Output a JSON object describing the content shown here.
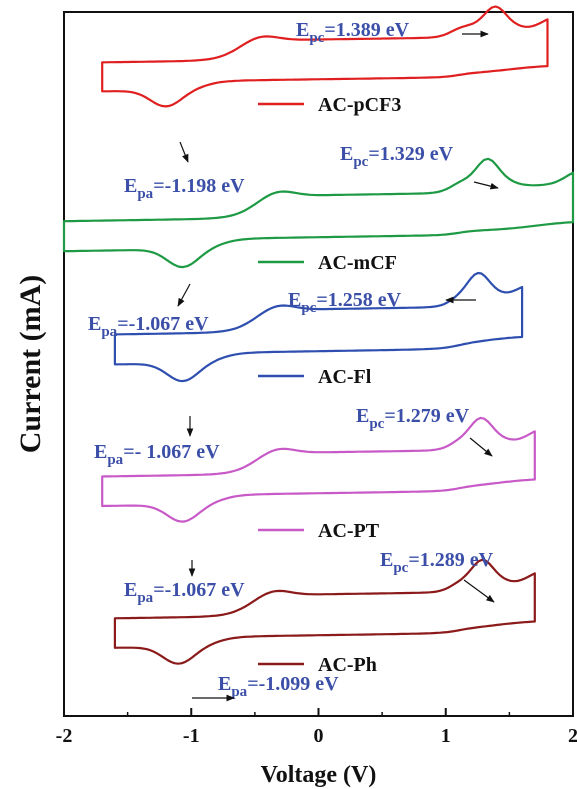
{
  "chart_data": {
    "type": "line",
    "xlabel": "Voltage (V)",
    "ylabel": "Current (mA)",
    "xlim": [
      -2,
      2
    ],
    "x_ticks": [
      "-2",
      "-1",
      "0",
      "1",
      "2"
    ],
    "y_ticks_labeled": false,
    "grid": false,
    "legend_placement": "inline-labels",
    "series": [
      {
        "name": "AC-pCF3",
        "color": "#e02020",
        "offset": 4,
        "annotations": [
          {
            "text": "Epc=1.389 eV",
            "sub": "pc",
            "value": "1.389 eV",
            "x": 1.389
          },
          {
            "text": "Epa=-1.198 eV",
            "sub": "pa",
            "value": "-1.198 eV",
            "x": -1.198
          }
        ],
        "profile": {
          "start": -1.7,
          "end": 1.8,
          "cathodic": 1.389,
          "anodic": -1.198
        }
      },
      {
        "name": "AC-mCF",
        "color": "#1e9a44",
        "offset": 3,
        "annotations": [
          {
            "text": "Epc=1.329 eV",
            "sub": "pc",
            "value": "1.329 eV",
            "x": 1.329
          },
          {
            "text": "Epa=-1.067 eV",
            "sub": "pa",
            "value": "-1.067 eV",
            "x": -1.067
          }
        ],
        "profile": {
          "start": -2.0,
          "end": 2.0,
          "cathodic": 1.329,
          "anodic": -1.067
        }
      },
      {
        "name": "AC-Fl",
        "color": "#2e4fb0",
        "offset": 2,
        "annotations": [
          {
            "text": "Epc=1.258 eV",
            "sub": "pc",
            "value": "1.258 eV",
            "x": 1.258
          },
          {
            "text": "Epa=- 1.067 eV",
            "sub": "pa",
            "value": "- 1.067 eV",
            "x": -1.067
          }
        ],
        "profile": {
          "start": -1.6,
          "end": 1.6,
          "cathodic": 1.258,
          "anodic": -1.067
        }
      },
      {
        "name": "AC-PT",
        "color": "#c85ac8",
        "offset": 1,
        "annotations": [
          {
            "text": "Epc=1.279 eV",
            "sub": "pc",
            "value": "1.279 eV",
            "x": 1.279
          },
          {
            "text": "Epa=-1.067 eV",
            "sub": "pa",
            "value": "-1.067 eV",
            "x": -1.067
          }
        ],
        "profile": {
          "start": -1.7,
          "end": 1.7,
          "cathodic": 1.279,
          "anodic": -1.067
        }
      },
      {
        "name": "AC-Ph",
        "color": "#8b1a1a",
        "offset": 0,
        "annotations": [
          {
            "text": "Epc=1.289 eV",
            "sub": "pc",
            "value": "1.289 eV",
            "x": 1.289
          },
          {
            "text": "Epa=-1.099 eV",
            "sub": "pa",
            "value": "-1.099 eV",
            "x": -1.099
          }
        ],
        "profile": {
          "start": -1.6,
          "end": 1.7,
          "cathodic": 1.289,
          "anodic": -1.099
        }
      }
    ]
  }
}
